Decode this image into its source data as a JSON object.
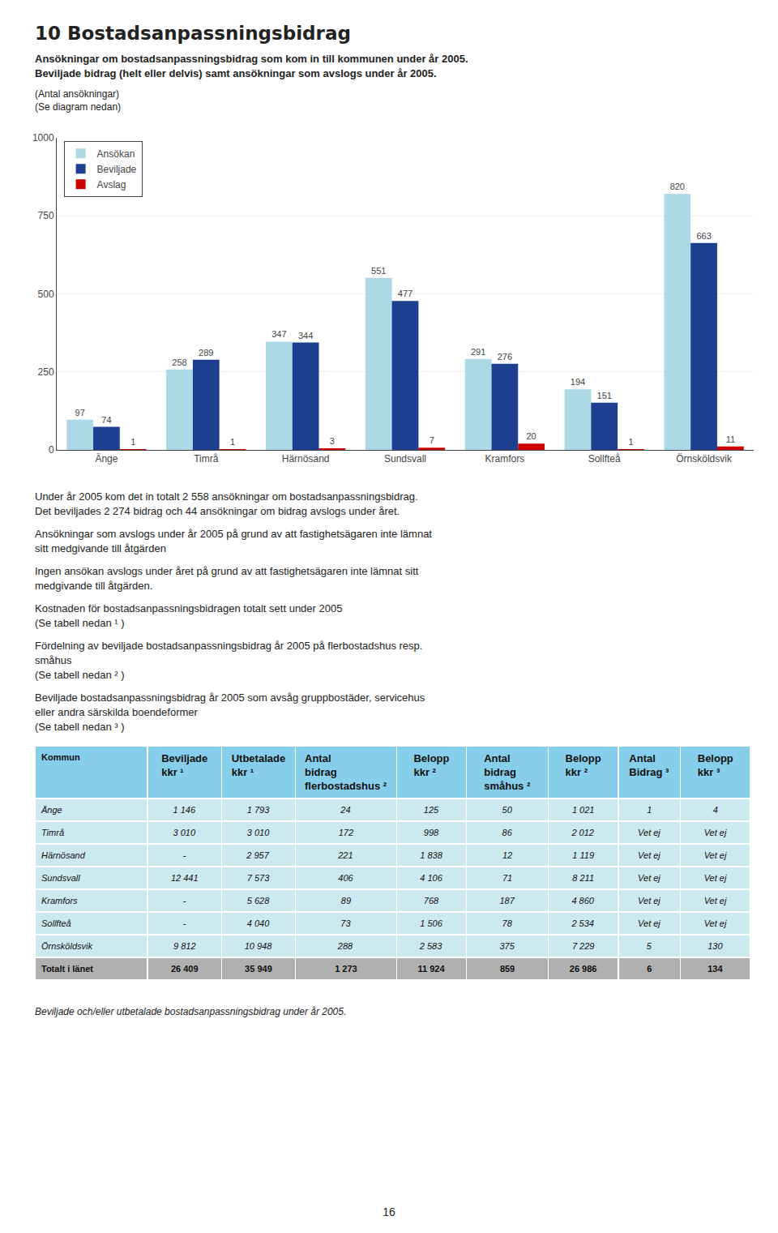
{
  "title": "10  Bostadsanpassningsbidrag",
  "subtitle": [
    "Ansökningar om bostadsanpassningsbidrag som kom in till kommunen under år 2005.",
    "Beviljade bidrag (helt eller delvis) samt ansökningar som avslogs under år 2005."
  ],
  "chart_data": [
    {
      "type": "bar",
      "annotations": [
        "(Antal ansökningar)",
        "(Se diagram nedan)"
      ],
      "categories": [
        "Änge",
        "Timrå",
        "Härnösand",
        "Sundsvall",
        "Kramfors",
        "Sollfteå",
        "Örnsköldsvik"
      ],
      "series": [
        {
          "name": "Ansökan",
          "color": "#add8e6",
          "values": [
            97,
            258,
            347,
            551,
            291,
            194,
            820
          ]
        },
        {
          "name": "Beviljade",
          "color": "#1e3f8f",
          "values": [
            74,
            289,
            344,
            477,
            276,
            151,
            663
          ]
        },
        {
          "name": "Avslag",
          "color": "#cc0000",
          "values": [
            1,
            1,
            3,
            7,
            20,
            1,
            11
          ]
        }
      ],
      "ylim": [
        0,
        1000
      ],
      "yticks": [
        0,
        250,
        500,
        750,
        1000
      ],
      "grid": true,
      "legend": "upper left",
      "data_labels": true
    },
    {
      "type": "table",
      "colors": [
        "#87CEEB",
        "#cce9f0",
        "#b0b0b0"
      ],
      "columns": [
        "Kommun",
        "Beviljade\nkkr ¹",
        "Utbetalade\nkkr ¹",
        "Antal\nbidrag\nflerbostadshus ²",
        "Belopp\nkkr ²",
        "Antal\nbidrag\nsmåhus ²",
        "Belopp\nkkr ²",
        "Antal\nBidrag ³",
        "Belopp\nkkr ³"
      ],
      "rows": [
        [
          "Änge",
          "1 146",
          "1 793",
          "24",
          "125",
          "50",
          "1 021",
          "1",
          "4"
        ],
        [
          "Timrå",
          "3 010",
          "3 010",
          "172",
          "998",
          "86",
          "2 012",
          "Vet ej",
          "Vet ej"
        ],
        [
          "Härnösand",
          "-",
          "2 957",
          "221",
          "1 838",
          "12",
          "1 119",
          "Vet ej",
          "Vet ej"
        ],
        [
          "Sundsvall",
          "12 441",
          "7 573",
          "406",
          "4 106",
          "71",
          "8 211",
          "Vet ej",
          "Vet ej"
        ],
        [
          "Kramfors",
          "-",
          "5 628",
          "89",
          "768",
          "187",
          "4 860",
          "Vet ej",
          "Vet ej"
        ],
        [
          "Sollfteå",
          "-",
          "4 040",
          "73",
          "1 506",
          "78",
          "2 534",
          "Vet ej",
          "Vet ej"
        ],
        [
          "Örnsköldsvik",
          "9 812",
          "10 948",
          "288",
          "2 583",
          "375",
          "7 229",
          "5",
          "130"
        ],
        [
          "Totalt i länet",
          "26 409",
          "35 949",
          "1 273",
          "11 924",
          "859",
          "26 986",
          "6",
          "134"
        ]
      ],
      "annotations": [
        "Beviljade och/eller utbetalade bostadsanpassningsbidrag under år 2005.",
        "16"
      ]
    }
  ],
  "annotations": [
    [
      "Under år 2005 kom det in totalt 2 558 ansökningar om bostadsanpassningsbidrag.",
      "Det beviljades 2 274 bidrag och 44 ansökningar om bidrag avslogs under året."
    ],
    [
      "Ansökningar som avslogs under år 2005 på grund av att fastighetsägaren inte lämnat",
      "sitt medgivande till åtgärden"
    ],
    [
      "Ingen ansökan avslogs under året på grund av att fastighetsägaren inte lämnat sitt",
      "medgivande till åtgärden."
    ],
    [
      "Kostnaden för bostadsanpassningsbidragen totalt sett under 2005",
      "(Se tabell nedan ¹ )"
    ],
    [
      "Fördelning av beviljade bostadsanpassningsbidrag år 2005 på flerbostadshus resp.",
      "småhus",
      "(Se tabell nedan ² )"
    ],
    [
      "Beviljade bostadsanpassningsbidrag år 2005 som avsåg gruppbostäder, servicehus",
      "eller andra särskilda boendeformer",
      "(Se tabell nedan ³ )"
    ]
  ]
}
